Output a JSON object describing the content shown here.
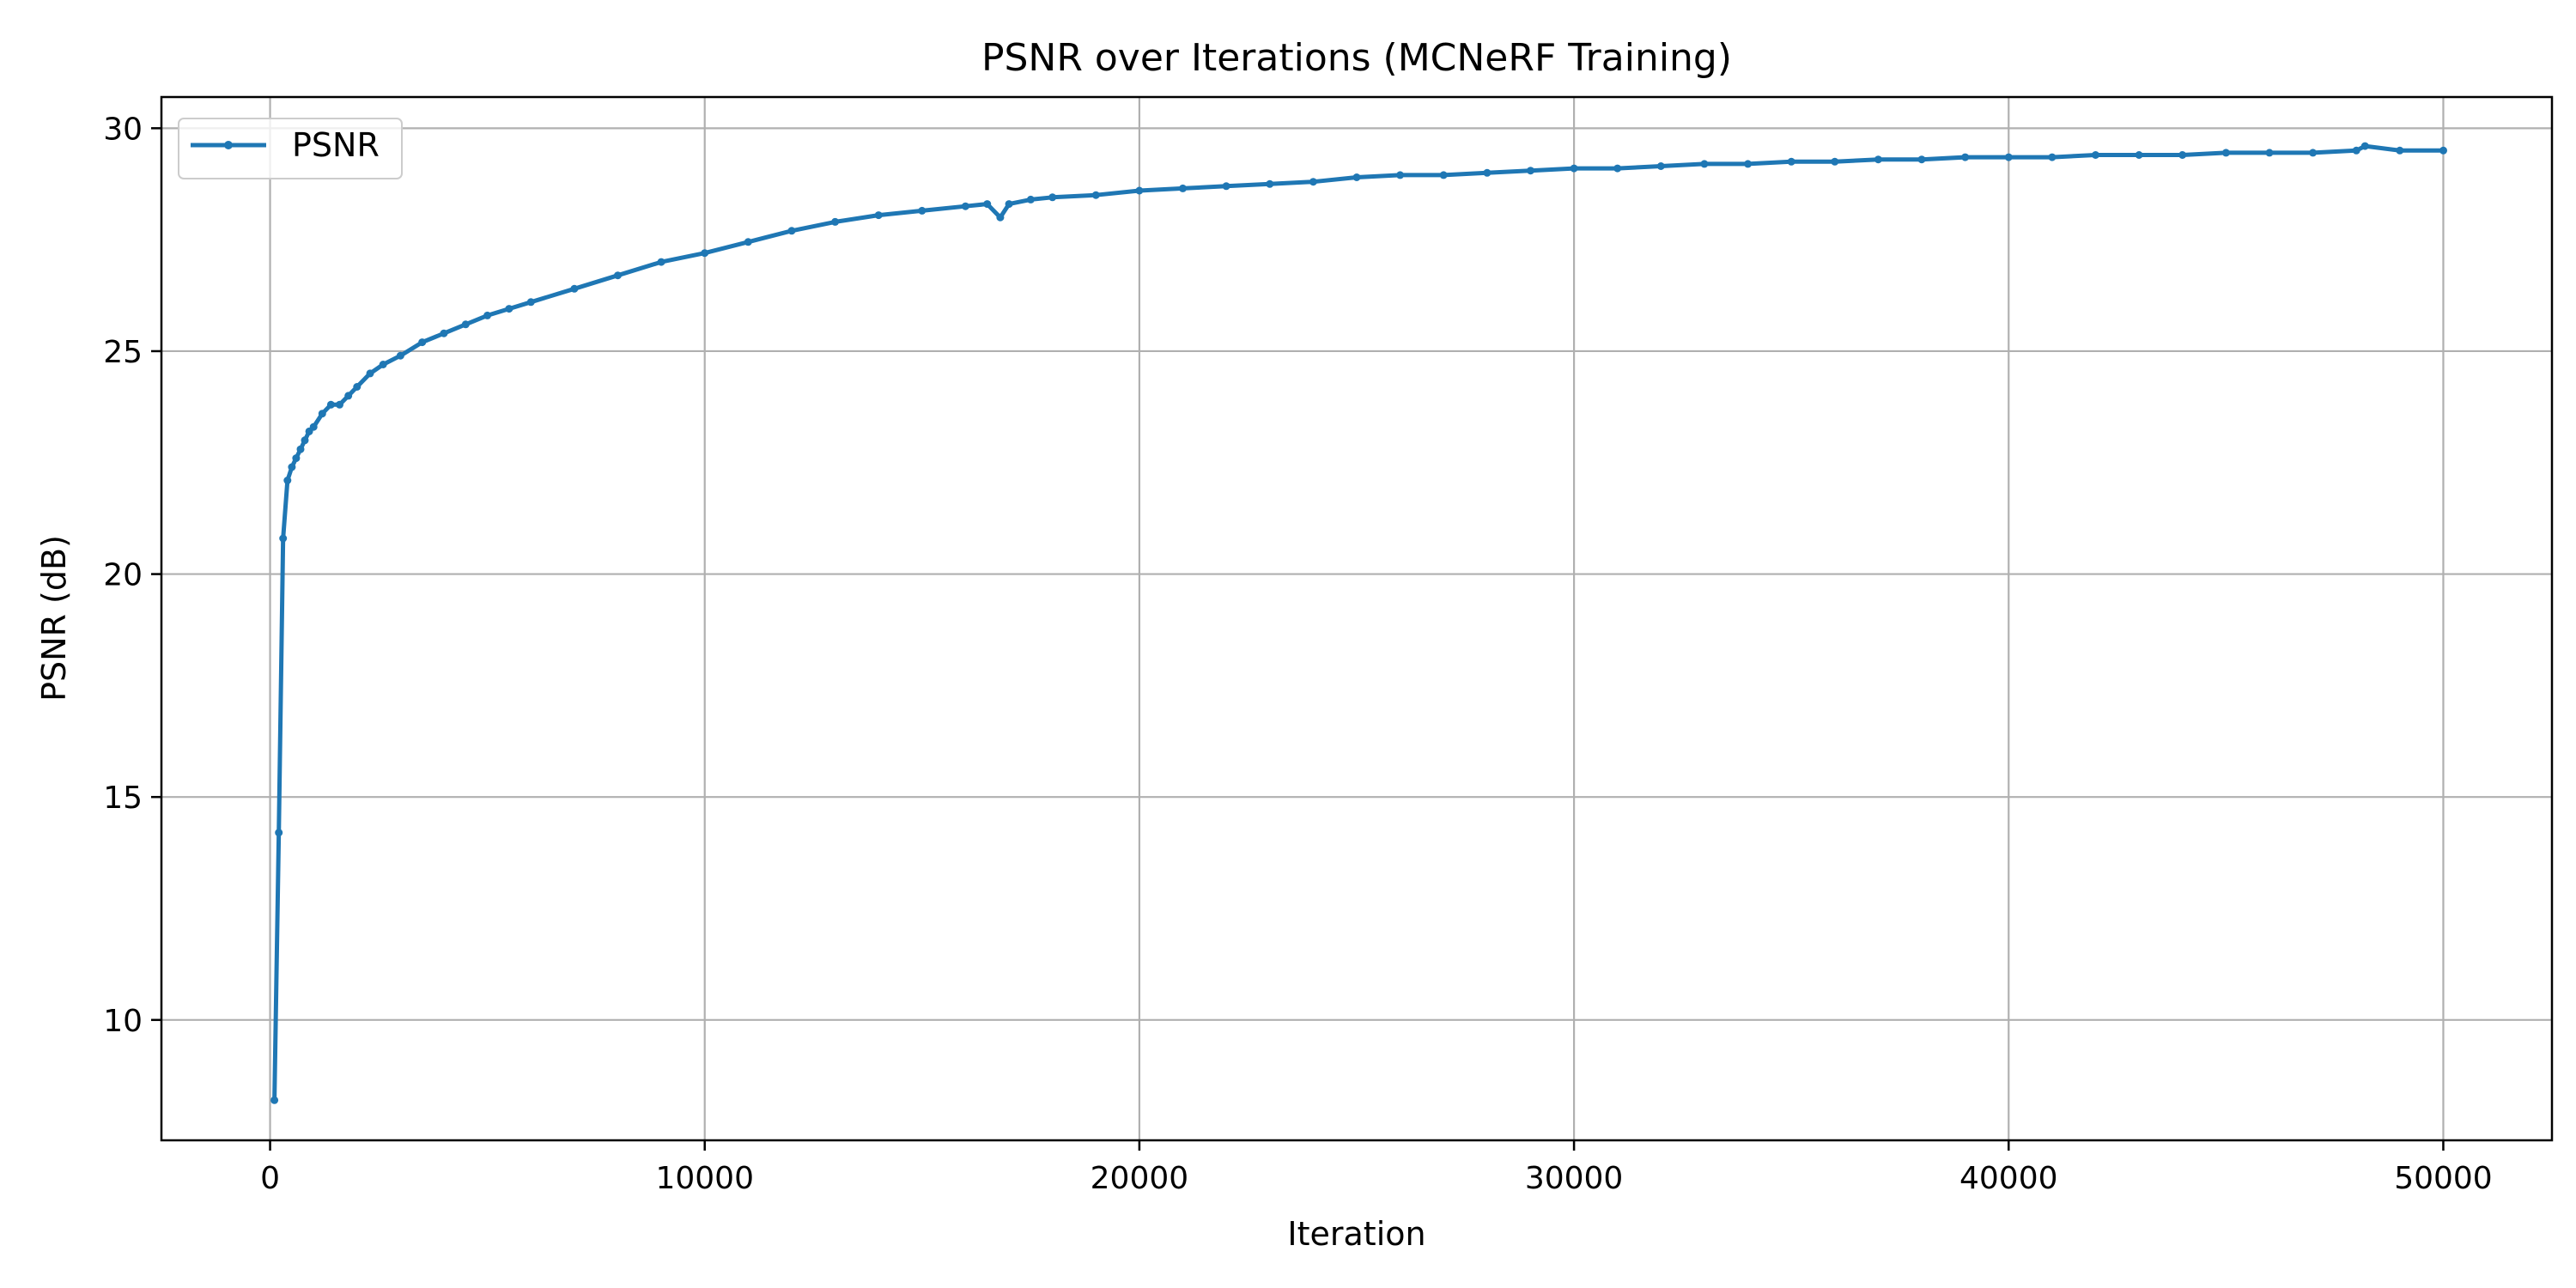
{
  "chart_data": {
    "type": "line",
    "title": "PSNR over Iterations (MCNeRF Training)",
    "xlabel": "Iteration",
    "ylabel": "PSNR (dB)",
    "xlim": [
      -2500,
      52500
    ],
    "ylim": [
      7.3,
      30.7
    ],
    "xticks": [
      0,
      10000,
      20000,
      30000,
      40000,
      50000
    ],
    "xtick_labels": [
      "0",
      "10000",
      "20000",
      "30000",
      "40000",
      "50000"
    ],
    "yticks": [
      10,
      15,
      20,
      25,
      30
    ],
    "ytick_labels": [
      "10",
      "15",
      "20",
      "25",
      "30"
    ],
    "grid": true,
    "legend": {
      "placement": "top-left",
      "entries": [
        "PSNR"
      ]
    },
    "colors": {
      "line": "#1f77b4"
    },
    "series": [
      {
        "name": "PSNR",
        "x": [
          100,
          200,
          300,
          400,
          500,
          600,
          700,
          800,
          900,
          1000,
          1200,
          1400,
          1600,
          1800,
          2000,
          2300,
          2600,
          3000,
          3500,
          4000,
          4500,
          5000,
          5500,
          6000,
          7000,
          8000,
          9000,
          10000,
          11000,
          12000,
          13000,
          14000,
          15000,
          16000,
          16500,
          16800,
          17000,
          17500,
          18000,
          19000,
          20000,
          21000,
          22000,
          23000,
          24000,
          25000,
          26000,
          27000,
          28000,
          29000,
          30000,
          31000,
          32000,
          33000,
          34000,
          35000,
          36000,
          37000,
          38000,
          39000,
          40000,
          41000,
          42000,
          43000,
          44000,
          45000,
          46000,
          47000,
          48000,
          48200,
          49000,
          50000
        ],
        "y": [
          8.2,
          14.2,
          20.8,
          22.1,
          22.4,
          22.6,
          22.8,
          23.0,
          23.2,
          23.3,
          23.6,
          23.8,
          23.8,
          24.0,
          24.2,
          24.5,
          24.7,
          24.9,
          25.2,
          25.4,
          25.6,
          25.8,
          25.95,
          26.1,
          26.4,
          26.7,
          27.0,
          27.2,
          27.45,
          27.7,
          27.9,
          28.05,
          28.15,
          28.25,
          28.3,
          28.0,
          28.3,
          28.4,
          28.45,
          28.5,
          28.6,
          28.65,
          28.7,
          28.75,
          28.8,
          28.9,
          28.95,
          28.95,
          29.0,
          29.05,
          29.1,
          29.1,
          29.15,
          29.2,
          29.2,
          29.25,
          29.25,
          29.3,
          29.3,
          29.35,
          29.35,
          29.35,
          29.4,
          29.4,
          29.4,
          29.45,
          29.45,
          29.45,
          29.5,
          29.6,
          29.5,
          29.5
        ]
      }
    ]
  }
}
